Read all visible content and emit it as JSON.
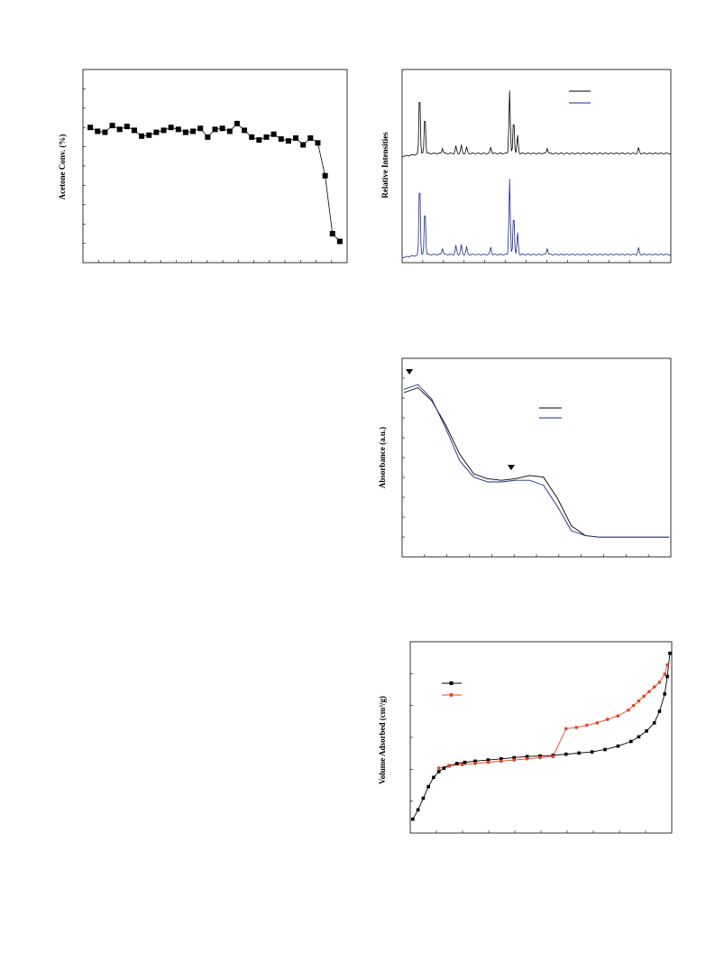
{
  "chart_data": [
    {
      "type": "line",
      "ylabel": "Acetone Conv. (%)",
      "x": [
        1,
        2,
        3,
        4,
        5,
        6,
        7,
        8,
        9,
        10,
        11,
        12,
        13,
        14,
        15,
        16,
        17,
        18,
        19,
        20,
        21,
        22,
        23,
        24,
        25,
        26,
        27,
        28,
        29,
        30,
        31,
        32,
        33,
        34,
        35
      ],
      "series": [
        {
          "marker": "square",
          "color": "#000000",
          "values": [
            79,
            78.8,
            78.75,
            79.1,
            78.9,
            79.05,
            78.85,
            78.55,
            78.6,
            78.75,
            78.85,
            79,
            78.9,
            78.75,
            78.8,
            78.95,
            78.5,
            78.9,
            78.95,
            78.8,
            79.2,
            78.85,
            78.5,
            78.35,
            78.5,
            78.65,
            78.4,
            78.3,
            78.45,
            78.1,
            78.45,
            78.2,
            76.5,
            73.5,
            73.1
          ]
        }
      ],
      "ylim": [
        72,
        82
      ],
      "xlim": [
        0,
        36
      ]
    },
    {
      "type": "line",
      "ylabel": "Relative Intensities",
      "legend_placement": "top-right",
      "series": [
        {
          "color": "#000000",
          "values": [
            0.2,
            0.22,
            0.5,
            1.0,
            0.55,
            0.2,
            0.16,
            0.24,
            0.28,
            0.3,
            0.27,
            0.18,
            0.2,
            0.25,
            0.3,
            0.95,
            0.6,
            0.2,
            0.18,
            0.16,
            0.22,
            0.17,
            0.19,
            0.15,
            0.16,
            0.14,
            0.13,
            0.18,
            0.13,
            0.12,
            0.13,
            0.12
          ]
        },
        {
          "color": "#1f2a8c",
          "values": [
            0.2,
            0.15,
            0.35,
            1.0,
            0.7,
            0.15,
            0.12,
            0.22,
            0.26,
            0.24,
            0.18,
            0.12,
            0.14,
            0.2,
            0.22,
            0.75,
            0.45,
            0.15,
            0.12,
            0.1,
            0.14,
            0.1,
            0.11,
            0.09,
            0.1,
            0.09,
            0.08,
            0.12,
            0.08,
            0.07,
            0.08,
            0.07
          ]
        }
      ]
    },
    {
      "type": "line",
      "ylabel": "Absorbance (a.u.)",
      "legend_placement": "top-right",
      "annotations": [
        "peak-marker-1",
        "peak-marker-2"
      ],
      "series": [
        {
          "color": "#000000",
          "values": [
            0.9,
            0.93,
            0.85,
            0.7,
            0.52,
            0.4,
            0.37,
            0.36,
            0.37,
            0.39,
            0.38,
            0.25,
            0.08,
            0.02,
            0.01,
            0.01,
            0.01,
            0.01,
            0.01,
            0.01
          ]
        },
        {
          "color": "#1f2a8c",
          "values": [
            0.92,
            0.95,
            0.86,
            0.68,
            0.48,
            0.38,
            0.35,
            0.35,
            0.36,
            0.36,
            0.33,
            0.2,
            0.05,
            0.02,
            0.01,
            0.01,
            0.01,
            0.01,
            0.01,
            0.01
          ]
        }
      ]
    },
    {
      "type": "line",
      "ylabel": "Volume  Adsorbed (cm³/g)",
      "legend_placement": "top-left",
      "series": [
        {
          "marker": "square",
          "color": "#000000",
          "x": [
            0.01,
            0.03,
            0.05,
            0.07,
            0.09,
            0.11,
            0.13,
            0.15,
            0.18,
            0.21,
            0.25,
            0.3,
            0.35,
            0.4,
            0.45,
            0.5,
            0.55,
            0.6,
            0.65,
            0.7,
            0.75,
            0.8,
            0.85,
            0.88,
            0.91,
            0.94,
            0.96,
            0.98,
            0.99,
            1.0
          ],
          "values": [
            12,
            20,
            30,
            40,
            48,
            53,
            56,
            58,
            60,
            61,
            62,
            63,
            64,
            65,
            66,
            66.5,
            67,
            68,
            69,
            70,
            72,
            75,
            79,
            83,
            88,
            95,
            105,
            120,
            135,
            155
          ]
        },
        {
          "marker": "circle",
          "color": "#e8401c",
          "x": [
            0.99,
            0.98,
            0.96,
            0.94,
            0.92,
            0.9,
            0.88,
            0.86,
            0.84,
            0.8,
            0.76,
            0.72,
            0.68,
            0.64,
            0.6,
            0.55,
            0.5,
            0.45,
            0.4,
            0.35,
            0.3,
            0.25,
            0.2,
            0.15,
            0.11
          ],
          "values": [
            145,
            137,
            130,
            126,
            122,
            118,
            114,
            110,
            106,
            101,
            98,
            95,
            93,
            91,
            90,
            66,
            65,
            64,
            63,
            62,
            61,
            60,
            59,
            58,
            56
          ]
        }
      ]
    }
  ]
}
